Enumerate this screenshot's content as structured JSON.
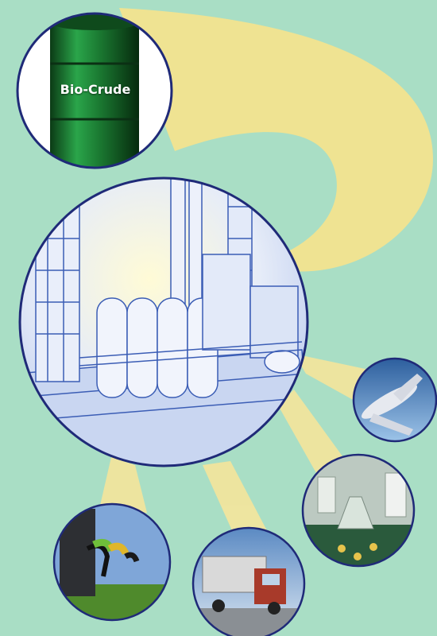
{
  "barrel": {
    "label": "Bio-Crude"
  },
  "colors": {
    "background": "#a9dec5",
    "arrow": "#f2e38f",
    "beam": "#f5e59b",
    "circle_border": "#1f2a78",
    "barrel": "#1f8a36",
    "refinery_line": "#3b5db5"
  },
  "products": [
    {
      "name": "airplane-icon"
    },
    {
      "name": "chemicals-icon"
    },
    {
      "name": "truck-icon"
    },
    {
      "name": "fuel-pump-icon"
    }
  ]
}
